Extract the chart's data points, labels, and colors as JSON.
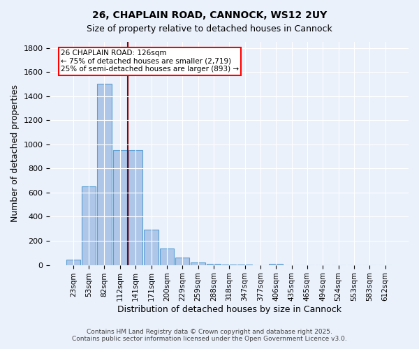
{
  "title_line1": "26, CHAPLAIN ROAD, CANNOCK, WS12 2UY",
  "title_line2": "Size of property relative to detached houses in Cannock",
  "xlabel": "Distribution of detached houses by size in Cannock",
  "ylabel": "Number of detached properties",
  "categories": [
    "23sqm",
    "53sqm",
    "82sqm",
    "112sqm",
    "141sqm",
    "171sqm",
    "200sqm",
    "229sqm",
    "259sqm",
    "288sqm",
    "318sqm",
    "347sqm",
    "377sqm",
    "406sqm",
    "435sqm",
    "465sqm",
    "494sqm",
    "524sqm",
    "553sqm",
    "583sqm",
    "612sqm"
  ],
  "values": [
    45,
    650,
    1500,
    950,
    950,
    290,
    135,
    60,
    20,
    8,
    3,
    1,
    0,
    10,
    0,
    0,
    0,
    0,
    0,
    0,
    0
  ],
  "bar_color": "#aec6e8",
  "bar_edge_color": "#5a9fd4",
  "vline_x": 3.5,
  "vline_color": "#8b0000",
  "annotation_text": "26 CHAPLAIN ROAD: 126sqm\n← 75% of detached houses are smaller (2,719)\n25% of semi-detached houses are larger (893) →",
  "annotation_box_color": "white",
  "annotation_box_edge_color": "red",
  "ylim": [
    0,
    1850
  ],
  "yticks": [
    0,
    200,
    400,
    600,
    800,
    1000,
    1200,
    1400,
    1600,
    1800
  ],
  "bg_color": "#eaf1fb",
  "grid_color": "white",
  "footer_line1": "Contains HM Land Registry data © Crown copyright and database right 2025.",
  "footer_line2": "Contains public sector information licensed under the Open Government Licence v3.0."
}
